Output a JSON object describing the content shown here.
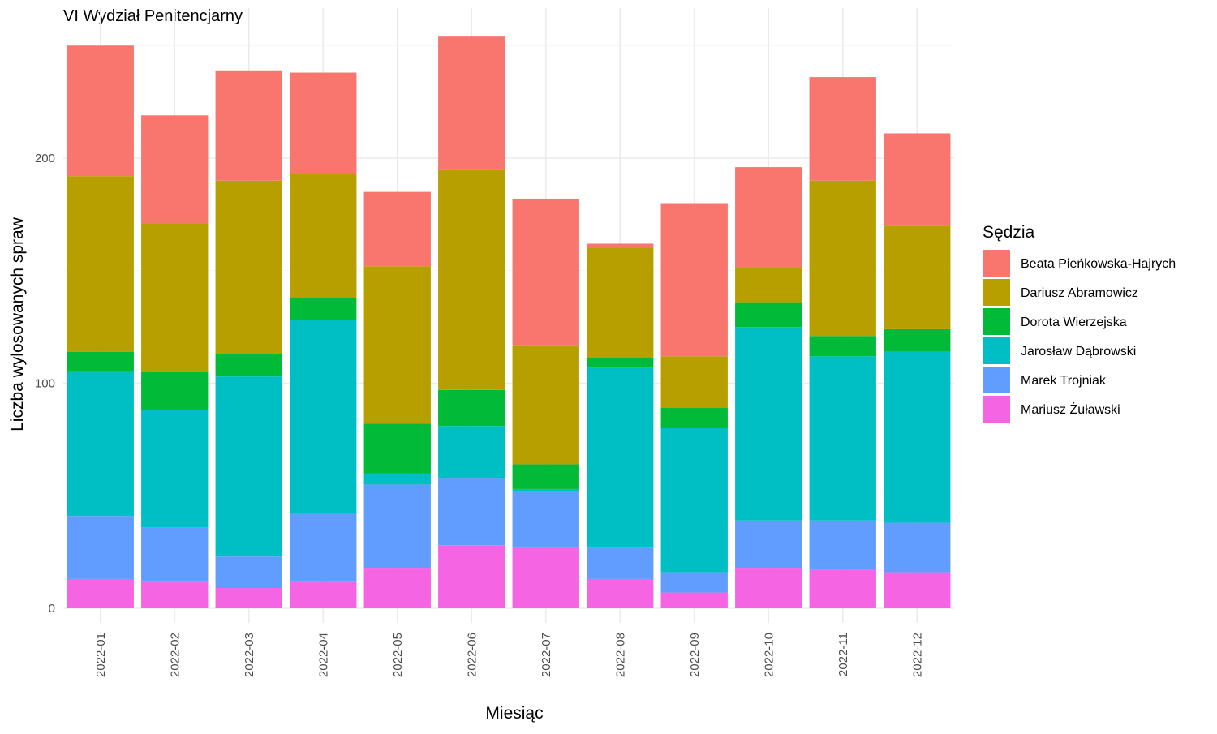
{
  "chart_data": {
    "type": "bar",
    "stacked": true,
    "title": "VI Wydział Penitencjarny",
    "xlabel": "Miesiąc",
    "ylabel": "Liczba wylosowanych spraw",
    "ylim": [
      0,
      250
    ],
    "yticks": [
      0,
      100,
      200
    ],
    "grid": true,
    "legend_title": "Sędzia",
    "legend_position": "right",
    "categories": [
      "2022-01",
      "2022-02",
      "2022-03",
      "2022-04",
      "2022-05",
      "2022-06",
      "2022-07",
      "2022-08",
      "2022-09",
      "2022-10",
      "2022-11",
      "2022-12"
    ],
    "series": [
      {
        "name": "Mariusz Żuławski",
        "color": "#F564E3",
        "values": [
          13,
          12,
          9,
          12,
          18,
          28,
          27,
          13,
          7,
          18,
          17,
          16
        ]
      },
      {
        "name": "Marek Trojniak",
        "color": "#619CFF",
        "values": [
          28,
          24,
          14,
          30,
          37,
          30,
          25,
          14,
          9,
          21,
          22,
          22
        ]
      },
      {
        "name": "Jarosław Dąbrowski",
        "color": "#00BFC4",
        "values": [
          64,
          52,
          80,
          86,
          5,
          23,
          1,
          80,
          64,
          86,
          73,
          76
        ]
      },
      {
        "name": "Dorota Wierzejska",
        "color": "#00BA38",
        "values": [
          9,
          17,
          10,
          10,
          22,
          16,
          11,
          4,
          9,
          11,
          9,
          10
        ]
      },
      {
        "name": "Dariusz Abramowicz",
        "color": "#B79F00",
        "values": [
          78,
          66,
          77,
          55,
          70,
          98,
          53,
          49,
          23,
          15,
          69,
          46
        ]
      },
      {
        "name": "Beata Pieńkowska-Hajrych",
        "color": "#F8766D",
        "values": [
          58,
          48,
          49,
          45,
          33,
          59,
          65,
          2,
          68,
          45,
          46,
          41
        ]
      }
    ],
    "legend_order": [
      "Beata Pieńkowska-Hajrych",
      "Dariusz Abramowicz",
      "Dorota Wierzejska",
      "Jarosław Dąbrowski",
      "Marek Trojniak",
      "Mariusz Żuławski"
    ]
  }
}
